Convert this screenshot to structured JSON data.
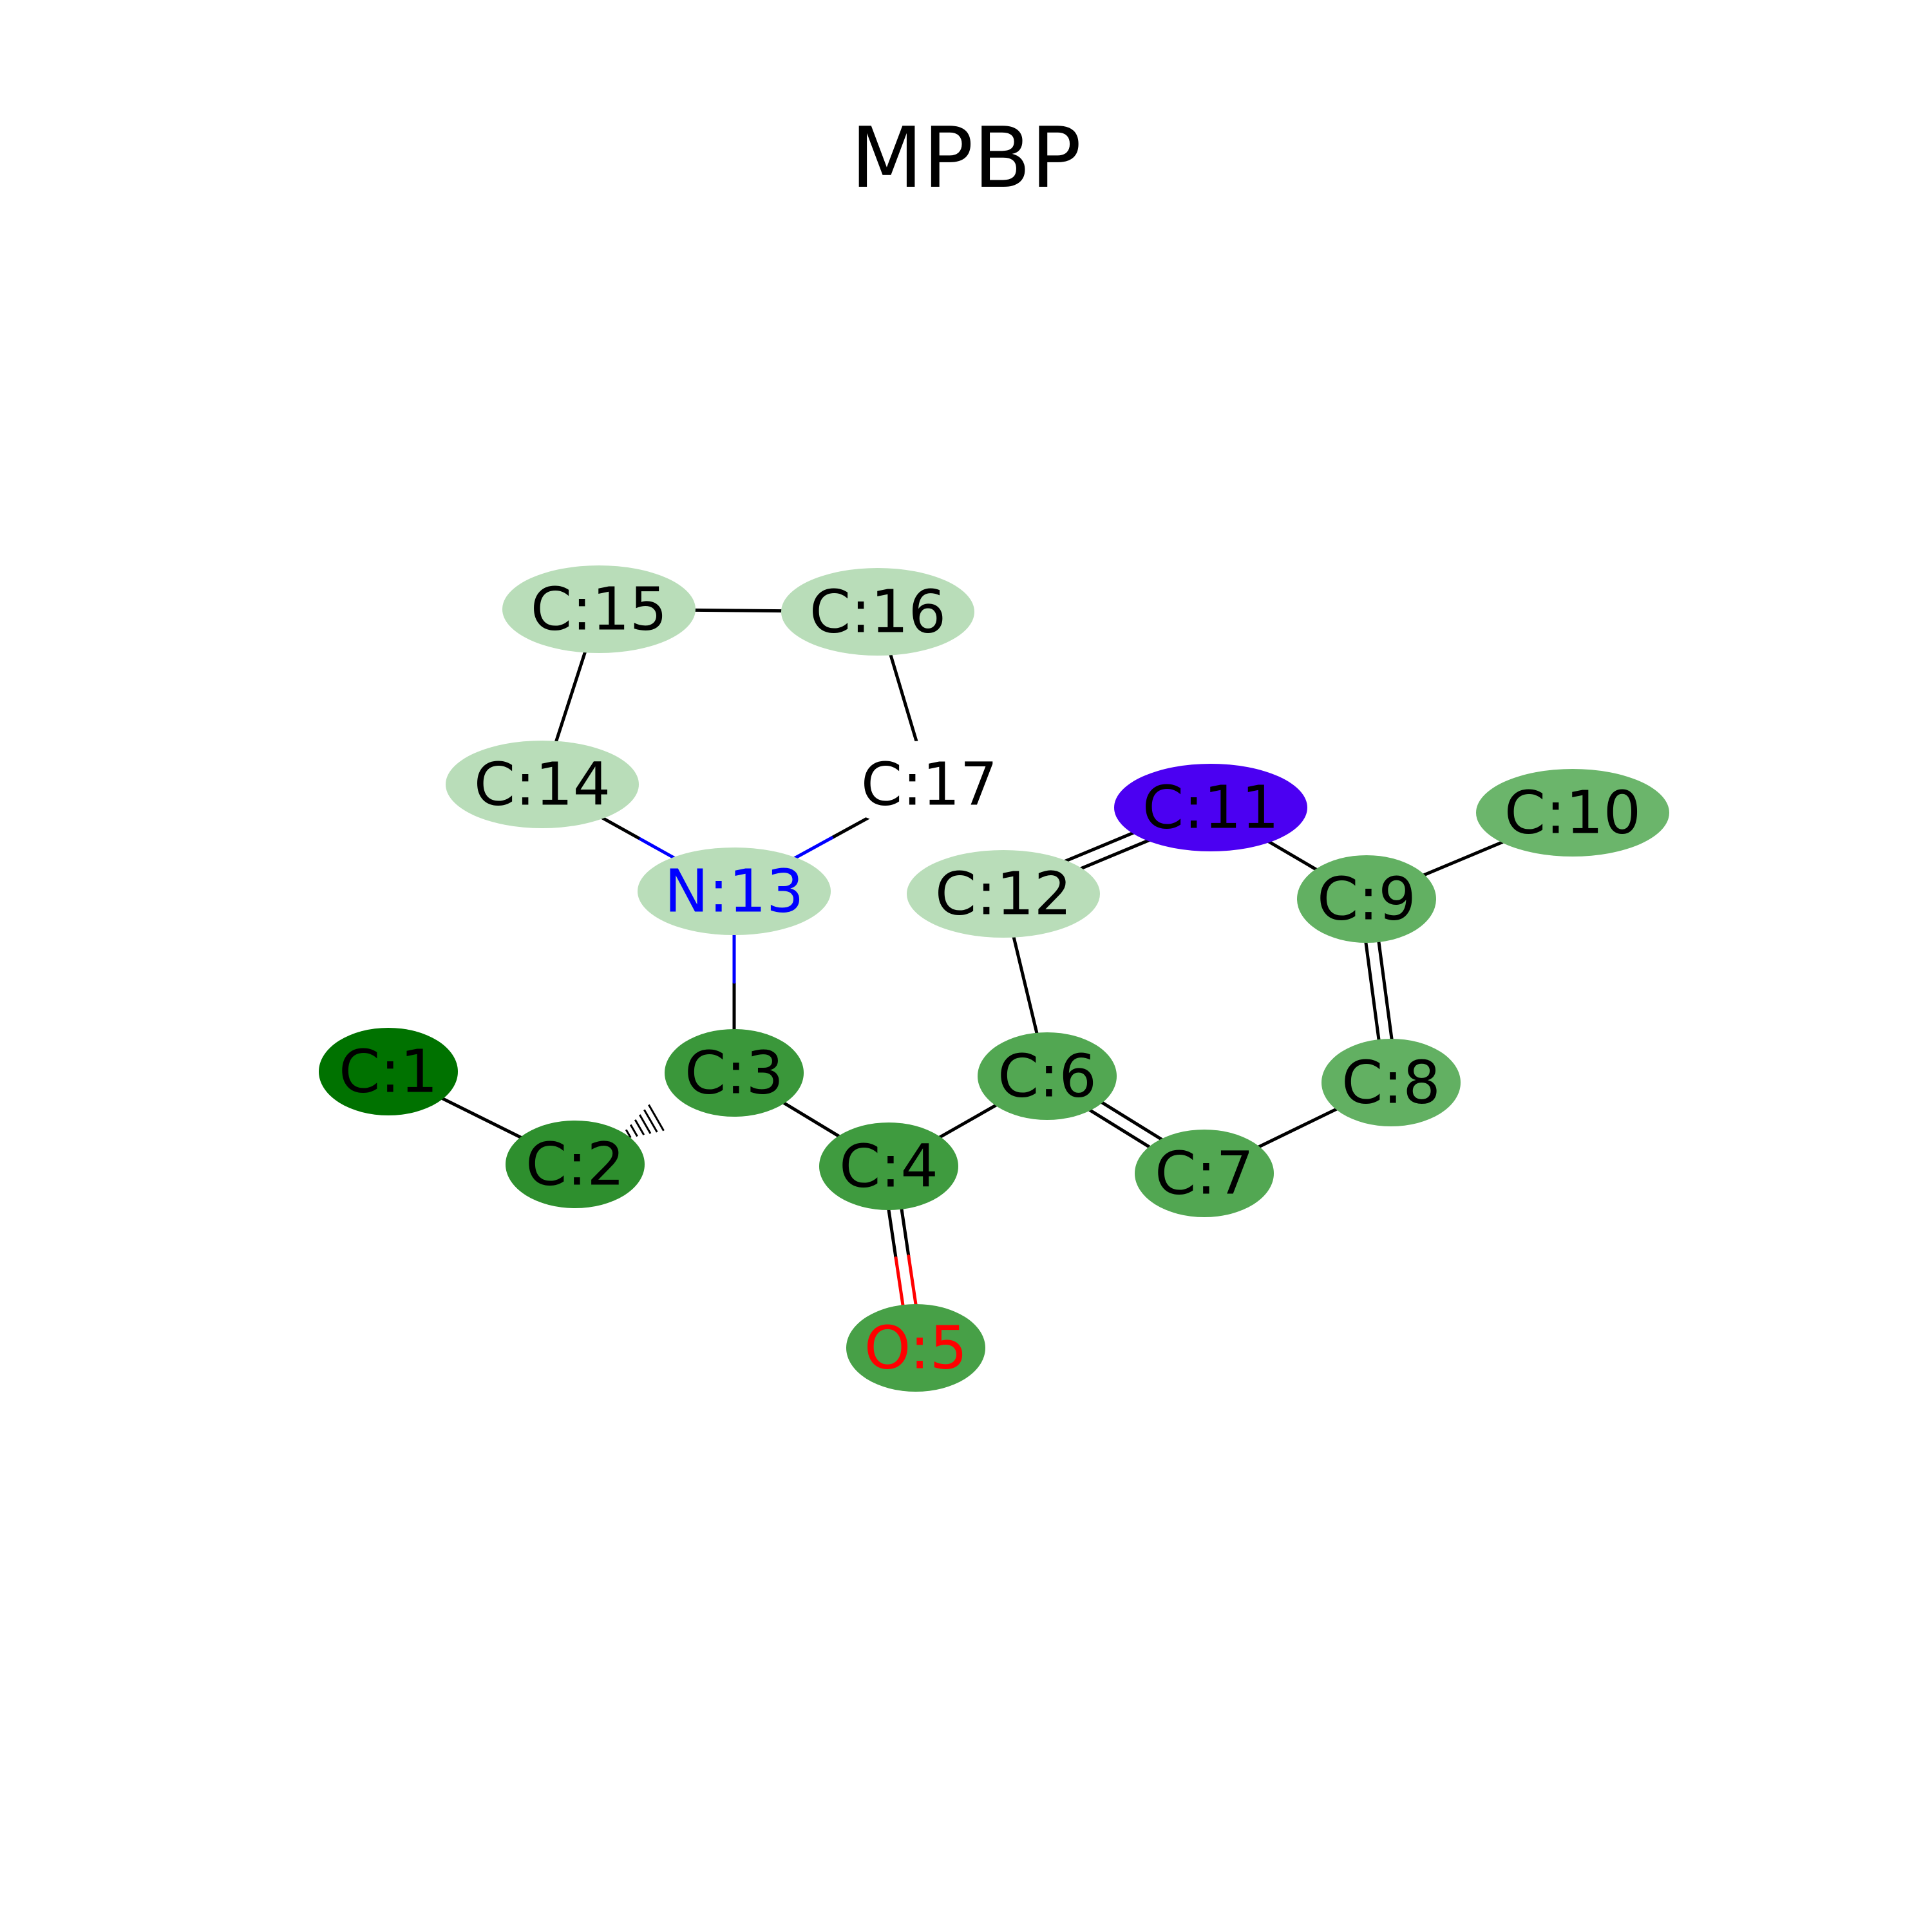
{
  "title": "MPBP",
  "bond_colors": {
    "default": "#000000",
    "nitrogen": "#0000ff",
    "oxygen": "#ff0000"
  },
  "atoms": [
    {
      "id": 1,
      "label": "C:1",
      "element": "C",
      "fill": "#007200",
      "text_color": "#000000"
    },
    {
      "id": 2,
      "label": "C:2",
      "element": "C",
      "fill": "#2e8f2e",
      "text_color": "#000000"
    },
    {
      "id": 3,
      "label": "C:3",
      "element": "C",
      "fill": "#3a973a",
      "text_color": "#000000"
    },
    {
      "id": 4,
      "label": "C:4",
      "element": "C",
      "fill": "#3f9b3f",
      "text_color": "#000000"
    },
    {
      "id": 5,
      "label": "O:5",
      "element": "O",
      "fill": "#47a047",
      "text_color": "#ff0000"
    },
    {
      "id": 6,
      "label": "C:6",
      "element": "C",
      "fill": "#52a752",
      "text_color": "#000000"
    },
    {
      "id": 7,
      "label": "C:7",
      "element": "C",
      "fill": "#52a752",
      "text_color": "#000000"
    },
    {
      "id": 8,
      "label": "C:8",
      "element": "C",
      "fill": "#62b062",
      "text_color": "#000000"
    },
    {
      "id": 9,
      "label": "C:9",
      "element": "C",
      "fill": "#62b062",
      "text_color": "#000000"
    },
    {
      "id": 10,
      "label": "C:10",
      "element": "C",
      "fill": "#6bb56b",
      "text_color": "#000000"
    },
    {
      "id": 11,
      "label": "C:11",
      "element": "C",
      "fill": "#4b00f2",
      "text_color": "#000000"
    },
    {
      "id": 12,
      "label": "C:12",
      "element": "C",
      "fill": "#b9ddb9",
      "text_color": "#000000"
    },
    {
      "id": 13,
      "label": "N:13",
      "element": "N",
      "fill": "#b9ddb9",
      "text_color": "#0000ff"
    },
    {
      "id": 14,
      "label": "C:14",
      "element": "C",
      "fill": "#b9ddb9",
      "text_color": "#000000"
    },
    {
      "id": 15,
      "label": "C:15",
      "element": "C",
      "fill": "#b9ddb9",
      "text_color": "#000000"
    },
    {
      "id": 16,
      "label": "C:16",
      "element": "C",
      "fill": "#b9ddb9",
      "text_color": "#000000"
    },
    {
      "id": 17,
      "label": "C:17",
      "element": "C",
      "fill": "#ffffff",
      "text_color": "#000000"
    }
  ],
  "bonds": [
    {
      "a": 1,
      "b": 2,
      "order": 1
    },
    {
      "a": 2,
      "b": 3,
      "order": 1,
      "stereo": "hash"
    },
    {
      "a": 3,
      "b": 4,
      "order": 1
    },
    {
      "a": 4,
      "b": 5,
      "order": 2
    },
    {
      "a": 4,
      "b": 6,
      "order": 1
    },
    {
      "a": 6,
      "b": 7,
      "order": 2
    },
    {
      "a": 7,
      "b": 8,
      "order": 1
    },
    {
      "a": 8,
      "b": 9,
      "order": 2
    },
    {
      "a": 9,
      "b": 10,
      "order": 1
    },
    {
      "a": 9,
      "b": 11,
      "order": 1
    },
    {
      "a": 11,
      "b": 12,
      "order": 2
    },
    {
      "a": 12,
      "b": 6,
      "order": 1
    },
    {
      "a": 3,
      "b": 13,
      "order": 1
    },
    {
      "a": 13,
      "b": 14,
      "order": 1
    },
    {
      "a": 14,
      "b": 15,
      "order": 1
    },
    {
      "a": 15,
      "b": 16,
      "order": 1
    },
    {
      "a": 16,
      "b": 17,
      "order": 1
    },
    {
      "a": 17,
      "b": 13,
      "order": 1
    }
  ]
}
